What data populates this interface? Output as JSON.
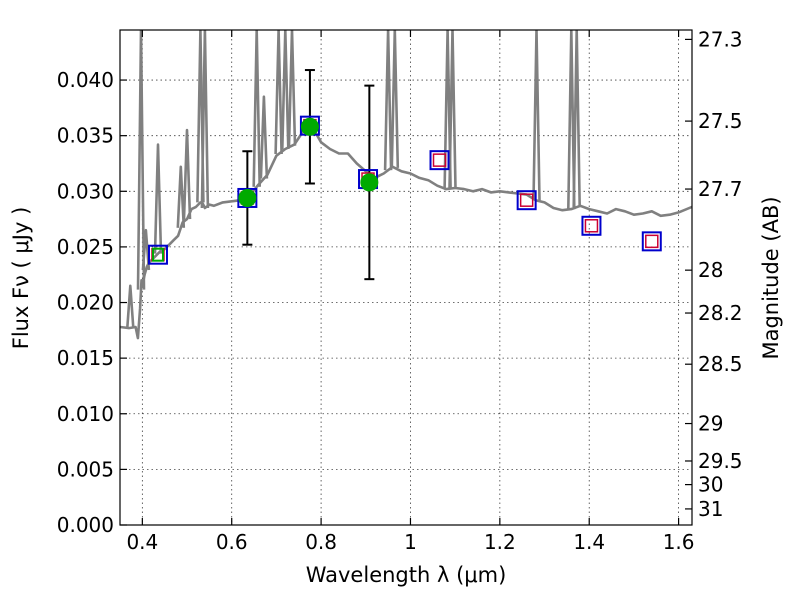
{
  "chart_data": {
    "type": "scatter",
    "title": "",
    "xlabel": "Wavelength  λ (μm)",
    "ylabel": "Flux  Fν  ( μJy )",
    "y2label": "Magnitude (AB)",
    "xlim": [
      0.35,
      1.63
    ],
    "ylim": [
      0.0,
      0.0445
    ],
    "xticks": [
      0.4,
      0.6,
      0.8,
      1.0,
      1.2,
      1.4,
      1.6
    ],
    "xtick_labels": [
      "0.4",
      "0.6",
      "0.8",
      "1",
      "1.2",
      "1.4",
      "1.6"
    ],
    "yticks": [
      0.0,
      0.005,
      0.01,
      0.015,
      0.02,
      0.025,
      0.03,
      0.035,
      0.04
    ],
    "ytick_labels": [
      "0.000",
      "0.005",
      "0.010",
      "0.015",
      "0.020",
      "0.025",
      "0.030",
      "0.035",
      "0.040"
    ],
    "y2ticks": [
      27.3,
      27.5,
      27.7,
      28,
      28.2,
      28.5,
      29,
      29.5,
      30,
      31
    ],
    "y2tick_labels": [
      "27.3",
      "27.5",
      "27.7",
      "28",
      "28.2",
      "28.5",
      "29",
      "29.5",
      "30",
      "31"
    ],
    "grid": true,
    "colors": {
      "sed": "#808080",
      "observed": "#00aa00",
      "model_box": "#0000cc",
      "model_inner": "#cc0033",
      "errorbar": "#000000"
    },
    "series": [
      {
        "kind": "line",
        "x": [
          0.35,
          0.37,
          0.385,
          0.39,
          0.395,
          0.398,
          0.4,
          0.405,
          0.41,
          0.415,
          0.42,
          0.43,
          0.44,
          0.45,
          0.46,
          0.47,
          0.48,
          0.49,
          0.5,
          0.51,
          0.52,
          0.53,
          0.535,
          0.54,
          0.55,
          0.56,
          0.58,
          0.6,
          0.62,
          0.64,
          0.66,
          0.68,
          0.7,
          0.72,
          0.74,
          0.76,
          0.78,
          0.8,
          0.82,
          0.84,
          0.86,
          0.88,
          0.9,
          0.92,
          0.94,
          0.96,
          0.98,
          1.0,
          1.02,
          1.04,
          1.06,
          1.08,
          1.1,
          1.12,
          1.14,
          1.16,
          1.18,
          1.2,
          1.22,
          1.24,
          1.26,
          1.28,
          1.3,
          1.32,
          1.34,
          1.36,
          1.38,
          1.4,
          1.42,
          1.44,
          1.46,
          1.48,
          1.5,
          1.52,
          1.54,
          1.56,
          1.58,
          1.6,
          1.63
        ],
        "y": [
          0.0178,
          0.0177,
          0.0178,
          0.0168,
          0.0195,
          0.022,
          0.0215,
          0.0225,
          0.0232,
          0.0236,
          0.0238,
          0.0242,
          0.0246,
          0.0248,
          0.0252,
          0.0256,
          0.026,
          0.0272,
          0.0275,
          0.0284,
          0.0286,
          0.029,
          0.0289,
          0.0285,
          0.0288,
          0.0287,
          0.029,
          0.0291,
          0.0292,
          0.0296,
          0.0306,
          0.0315,
          0.0332,
          0.0338,
          0.0342,
          0.0354,
          0.0358,
          0.0344,
          0.0338,
          0.0334,
          0.0334,
          0.0325,
          0.0318,
          0.0312,
          0.0316,
          0.0322,
          0.0318,
          0.0316,
          0.0312,
          0.031,
          0.0305,
          0.0302,
          0.0303,
          0.0302,
          0.03,
          0.0302,
          0.0299,
          0.03,
          0.0299,
          0.0298,
          0.0297,
          0.0292,
          0.029,
          0.0285,
          0.0283,
          0.0284,
          0.0287,
          0.0284,
          0.0282,
          0.028,
          0.0284,
          0.0282,
          0.0279,
          0.028,
          0.0282,
          0.0278,
          0.0279,
          0.0281,
          0.0286
        ]
      },
      {
        "kind": "emission_lines",
        "lines": [
          {
            "x": 0.373,
            "peak": 0.0215
          },
          {
            "x": 0.397,
            "peak": 0.0445
          },
          {
            "x": 0.408,
            "peak": 0.0265
          },
          {
            "x": 0.435,
            "peak": 0.0342
          },
          {
            "x": 0.486,
            "peak": 0.0322
          },
          {
            "x": 0.5,
            "peak": 0.0355
          },
          {
            "x": 0.53,
            "peak": 0.0445
          },
          {
            "x": 0.54,
            "peak": 0.0445
          },
          {
            "x": 0.656,
            "peak": 0.0445
          },
          {
            "x": 0.672,
            "peak": 0.0385
          },
          {
            "x": 0.705,
            "peak": 0.0445
          },
          {
            "x": 0.72,
            "peak": 0.0445
          },
          {
            "x": 0.735,
            "peak": 0.0445
          },
          {
            "x": 0.95,
            "peak": 0.0445
          },
          {
            "x": 0.965,
            "peak": 0.0445
          },
          {
            "x": 1.083,
            "peak": 0.0445
          },
          {
            "x": 1.094,
            "peak": 0.0445
          },
          {
            "x": 1.282,
            "peak": 0.0445
          },
          {
            "x": 1.36,
            "peak": 0.0445
          },
          {
            "x": 1.372,
            "peak": 0.0445
          }
        ]
      },
      {
        "kind": "model_photometry",
        "x": [
          0.435,
          0.635,
          0.775,
          0.905,
          1.065,
          1.26,
          1.405,
          1.54
        ],
        "y": [
          0.0243,
          0.0294,
          0.0359,
          0.0311,
          0.0328,
          0.0292,
          0.0269,
          0.0255
        ]
      },
      {
        "kind": "observed_photometry",
        "x": [
          0.435,
          0.635,
          0.775,
          0.908
        ],
        "y": [
          0.0243,
          0.0294,
          0.0358,
          0.0308
        ],
        "yerr": [
          0.0,
          0.0042,
          0.0051,
          0.0087
        ]
      }
    ]
  }
}
